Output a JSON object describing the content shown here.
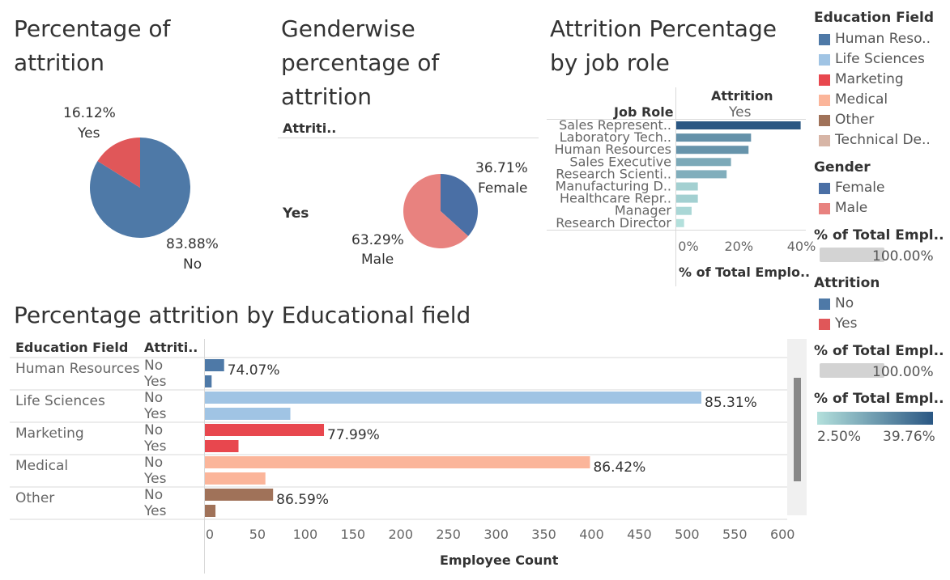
{
  "dashboard": {
    "attrition_title": "Percentage of attrition",
    "gender_title": "Genderwise percentage of attrition",
    "jobrole_title": "Attrition Percentage by job role",
    "edu_title": "Percentage attrition by Educational field",
    "gender_header": "Attriti..",
    "gender_row_label": "Yes",
    "job_header_col": "Job Role",
    "job_header_attr": "Attrition",
    "job_header_attr_val": "Yes",
    "job_axis_title": "% of Total Emplo..",
    "edu_header_field": "Education Field",
    "edu_header_attr": "Attriti..",
    "edu_axis_title": "Employee Count"
  },
  "legends": {
    "education_title": "Education Field",
    "education_items": [
      {
        "label": "Human Reso..",
        "color": "#4e79a7"
      },
      {
        "label": "Life Sciences",
        "color": "#a0c4e4"
      },
      {
        "label": "Marketing",
        "color": "#e8474e"
      },
      {
        "label": "Medical",
        "color": "#fbb59a"
      },
      {
        "label": "Other",
        "color": "#a07259"
      },
      {
        "label": "Technical De..",
        "color": "#d7b5a6"
      }
    ],
    "gender_title": "Gender",
    "gender_items": [
      {
        "label": "Female",
        "color": "#4a6fa5"
      },
      {
        "label": "Male",
        "color": "#e8827f"
      }
    ],
    "pct1_title": "% of Total Empl..",
    "pct1_value": "100.00%",
    "attrition_title": "Attrition",
    "attrition_items": [
      {
        "label": "No",
        "color": "#4e79a7"
      },
      {
        "label": "Yes",
        "color": "#e05759"
      }
    ],
    "pct2_title": "% of Total Empl..",
    "pct2_value": "100.00%",
    "pct3_title": "% of Total Empl..",
    "pct3_min": "2.50%",
    "pct3_max": "39.76%"
  },
  "chart_data": [
    {
      "type": "pie",
      "title": "Percentage of attrition",
      "categories": [
        "Yes",
        "No"
      ],
      "values": [
        16.12,
        83.88
      ],
      "labels": [
        "16.12%",
        "83.88%"
      ],
      "colors": [
        "#e05759",
        "#4e79a7"
      ]
    },
    {
      "type": "pie",
      "title": "Genderwise percentage of attrition",
      "row": "Yes",
      "categories": [
        "Female",
        "Male"
      ],
      "values": [
        36.71,
        63.29
      ],
      "labels": [
        "36.71%",
        "63.29%"
      ],
      "colors": [
        "#4a6fa5",
        "#e8827f"
      ]
    },
    {
      "type": "bar",
      "title": "Attrition Percentage by job role",
      "categories": [
        "Sales Represent..",
        "Laboratory Tech..",
        "Human Resources",
        "Sales Executive",
        "Research Scienti..",
        "Manufacturing D..",
        "Healthcare Repr..",
        "Manager",
        "Research Director"
      ],
      "values": [
        39.76,
        23.9,
        23.1,
        17.5,
        16.1,
        6.9,
        6.9,
        4.9,
        2.5
      ],
      "xlim": [
        0,
        45
      ],
      "xticks": [
        0,
        20,
        40
      ],
      "xtick_labels": [
        "0%",
        "20%",
        "40%"
      ],
      "xlabel": "% of Total Emplo..",
      "color_range": [
        "#b3e0dc",
        "#2a5783"
      ]
    },
    {
      "type": "bar",
      "title": "Percentage attrition by Educational field",
      "xlabel": "Employee Count",
      "xlim": [
        0,
        600
      ],
      "xticks": [
        0,
        50,
        100,
        150,
        200,
        250,
        300,
        350,
        400,
        450,
        500,
        550,
        600
      ],
      "groups": [
        {
          "field": "Human Resources",
          "color": "#4e79a7",
          "no": 20,
          "yes": 7,
          "label": "74.07%"
        },
        {
          "field": "Life Sciences",
          "color": "#a0c4e4",
          "no": 517,
          "yes": 89,
          "label": "85.31%"
        },
        {
          "field": "Marketing",
          "color": "#e8474e",
          "no": 124,
          "yes": 35,
          "label": "77.99%"
        },
        {
          "field": "Medical",
          "color": "#fbb59a",
          "no": 401,
          "yes": 63,
          "label": "86.42%"
        },
        {
          "field": "Other",
          "color": "#a07259",
          "no": 71,
          "yes": 11,
          "label": "86.59%"
        }
      ],
      "attr_labels": [
        "No",
        "Yes"
      ]
    }
  ]
}
